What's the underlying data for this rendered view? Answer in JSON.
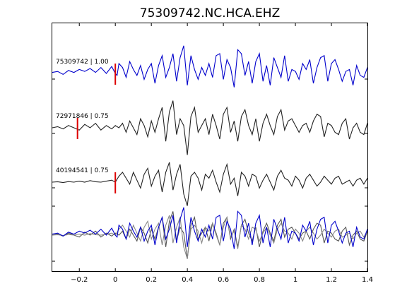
{
  "chart_data": {
    "type": "line",
    "title": "75309742.NC.HCA.EHZ",
    "xlabel": "",
    "ylabel": "",
    "xlim": [
      -0.35,
      1.4
    ],
    "xticks": [
      -0.2,
      0,
      0.2,
      0.4,
      0.6,
      0.8,
      1,
      1.2,
      1.4
    ],
    "xtick_labels": [
      "−0.2",
      "0",
      "0.2",
      "0.4",
      "0.6",
      "0.8",
      "1",
      "1.2",
      "1.4"
    ],
    "grid": false,
    "legend": "none",
    "pick_color": "#dd0000",
    "series": [
      {
        "label": "75309742 | 1.00",
        "color": "#0000cc",
        "pick_time": 0.0,
        "x": [
          -0.35,
          -0.32,
          -0.29,
          -0.26,
          -0.23,
          -0.2,
          -0.17,
          -0.14,
          -0.11,
          -0.08,
          -0.05,
          -0.02,
          0.0,
          0.01,
          0.02,
          0.04,
          0.06,
          0.08,
          0.1,
          0.12,
          0.14,
          0.16,
          0.18,
          0.2,
          0.22,
          0.24,
          0.26,
          0.28,
          0.3,
          0.32,
          0.34,
          0.36,
          0.38,
          0.4,
          0.42,
          0.44,
          0.46,
          0.48,
          0.5,
          0.52,
          0.54,
          0.56,
          0.58,
          0.6,
          0.62,
          0.64,
          0.66,
          0.68,
          0.7,
          0.72,
          0.74,
          0.76,
          0.78,
          0.8,
          0.82,
          0.84,
          0.86,
          0.88,
          0.9,
          0.92,
          0.94,
          0.96,
          0.98,
          1.0,
          1.02,
          1.04,
          1.06,
          1.08,
          1.1,
          1.12,
          1.14,
          1.16,
          1.18,
          1.2,
          1.22,
          1.24,
          1.26,
          1.28,
          1.3,
          1.32,
          1.34,
          1.36,
          1.38,
          1.4
        ],
        "y": [
          0.05,
          0.1,
          -0.05,
          0.15,
          0.05,
          0.2,
          0.1,
          0.25,
          0.05,
          0.3,
          0.0,
          0.35,
          0.0,
          -0.1,
          0.5,
          0.3,
          -0.2,
          0.6,
          0.2,
          -0.1,
          0.4,
          -0.3,
          0.2,
          0.5,
          -0.5,
          0.4,
          0.9,
          -0.2,
          0.3,
          1.0,
          -0.4,
          0.8,
          1.4,
          -0.6,
          0.9,
          0.2,
          -0.3,
          0.3,
          -0.1,
          0.5,
          -0.2,
          0.9,
          1.0,
          -0.3,
          0.7,
          0.3,
          -0.7,
          1.2,
          1.0,
          -0.1,
          0.6,
          -0.5,
          0.6,
          1.0,
          -0.4,
          0.4,
          -0.6,
          0.8,
          0.3,
          -0.2,
          0.9,
          -0.4,
          0.2,
          0.1,
          -0.3,
          0.5,
          0.2,
          0.7,
          -0.5,
          0.3,
          0.8,
          0.9,
          -0.4,
          0.5,
          0.7,
          0.2,
          -0.4,
          0.1,
          0.2,
          -0.6,
          0.4,
          -0.1,
          -0.2,
          0.3
        ]
      },
      {
        "label": "72971846 | 0.75",
        "color": "#222222",
        "pick_time": -0.21,
        "x": [
          -0.35,
          -0.32,
          -0.29,
          -0.26,
          -0.23,
          -0.2,
          -0.17,
          -0.14,
          -0.11,
          -0.08,
          -0.05,
          -0.02,
          0.0,
          0.02,
          0.04,
          0.06,
          0.08,
          0.1,
          0.12,
          0.14,
          0.16,
          0.18,
          0.2,
          0.22,
          0.24,
          0.26,
          0.28,
          0.3,
          0.32,
          0.34,
          0.36,
          0.38,
          0.4,
          0.42,
          0.44,
          0.46,
          0.48,
          0.5,
          0.52,
          0.54,
          0.56,
          0.58,
          0.6,
          0.62,
          0.64,
          0.66,
          0.68,
          0.7,
          0.72,
          0.74,
          0.76,
          0.78,
          0.8,
          0.82,
          0.84,
          0.86,
          0.88,
          0.9,
          0.92,
          0.94,
          0.96,
          0.98,
          1.0,
          1.02,
          1.04,
          1.06,
          1.08,
          1.1,
          1.12,
          1.14,
          1.16,
          1.18,
          1.2,
          1.22,
          1.24,
          1.26,
          1.28,
          1.3,
          1.32,
          1.34,
          1.36,
          1.38,
          1.4
        ],
        "y": [
          0.0,
          0.05,
          -0.05,
          0.1,
          0.0,
          -0.1,
          0.15,
          0.0,
          0.2,
          -0.1,
          0.1,
          -0.05,
          0.1,
          0.0,
          0.2,
          -0.2,
          0.3,
          0.0,
          -0.3,
          0.4,
          0.1,
          -0.4,
          0.3,
          -0.2,
          0.4,
          0.9,
          -0.6,
          0.7,
          1.2,
          -0.3,
          0.4,
          0.1,
          -1.2,
          0.5,
          0.9,
          -0.2,
          0.1,
          0.4,
          -0.3,
          0.6,
          0.1,
          -0.5,
          0.6,
          0.9,
          -0.2,
          0.3,
          -0.6,
          0.5,
          0.8,
          0.1,
          -0.3,
          0.4,
          -0.6,
          0.2,
          0.6,
          0.1,
          -0.3,
          0.5,
          0.8,
          -0.1,
          0.3,
          0.4,
          0.1,
          -0.2,
          0.1,
          0.2,
          -0.2,
          0.3,
          0.6,
          0.5,
          -0.4,
          0.2,
          0.1,
          -0.2,
          -0.3,
          0.2,
          0.4,
          -0.5,
          0.0,
          0.2,
          -0.2,
          -0.3,
          0.2
        ]
      },
      {
        "label": "40194541 | 0.75",
        "color": "#222222",
        "pick_time": 0.0,
        "x": [
          -0.35,
          -0.32,
          -0.29,
          -0.26,
          -0.23,
          -0.2,
          -0.17,
          -0.14,
          -0.11,
          -0.08,
          -0.05,
          -0.02,
          0.0,
          0.02,
          0.04,
          0.06,
          0.08,
          0.1,
          0.12,
          0.14,
          0.16,
          0.18,
          0.2,
          0.22,
          0.24,
          0.26,
          0.28,
          0.3,
          0.32,
          0.34,
          0.36,
          0.38,
          0.4,
          0.42,
          0.44,
          0.46,
          0.48,
          0.5,
          0.52,
          0.54,
          0.56,
          0.58,
          0.6,
          0.62,
          0.64,
          0.66,
          0.68,
          0.7,
          0.72,
          0.74,
          0.76,
          0.78,
          0.8,
          0.82,
          0.84,
          0.86,
          0.88,
          0.9,
          0.92,
          0.94,
          0.96,
          0.98,
          1.0,
          1.02,
          1.04,
          1.06,
          1.08,
          1.1,
          1.12,
          1.14,
          1.16,
          1.18,
          1.2,
          1.22,
          1.24,
          1.26,
          1.28,
          1.3,
          1.32,
          1.34,
          1.36,
          1.38,
          1.4
        ],
        "y": [
          0.0,
          0.02,
          -0.02,
          0.03,
          0.0,
          0.05,
          0.0,
          0.08,
          0.02,
          0.0,
          0.05,
          0.1,
          0.0,
          0.3,
          0.5,
          0.2,
          -0.1,
          0.5,
          0.1,
          -0.3,
          0.4,
          0.7,
          -0.2,
          0.3,
          0.6,
          -0.5,
          0.5,
          1.0,
          -0.4,
          0.4,
          0.9,
          -0.6,
          -1.2,
          0.3,
          0.5,
          0.2,
          -0.4,
          0.4,
          0.2,
          0.6,
          0.0,
          -0.5,
          0.4,
          0.9,
          -0.1,
          0.2,
          -0.7,
          0.5,
          0.3,
          -0.2,
          0.4,
          0.3,
          -0.3,
          0.1,
          0.4,
          0.0,
          -0.4,
          0.3,
          0.6,
          0.2,
          0.1,
          -0.2,
          0.3,
          0.1,
          -0.3,
          0.2,
          0.4,
          0.1,
          -0.2,
          0.0,
          0.3,
          0.1,
          -0.1,
          0.2,
          0.3,
          -0.1,
          0.0,
          0.1,
          -0.2,
          0.1,
          0.2,
          -0.1,
          0.2
        ]
      }
    ],
    "overlay": {
      "description_series": "stack of all three traces overlaid",
      "colors": [
        "#0000cc",
        "#555555",
        "#888888"
      ]
    }
  }
}
